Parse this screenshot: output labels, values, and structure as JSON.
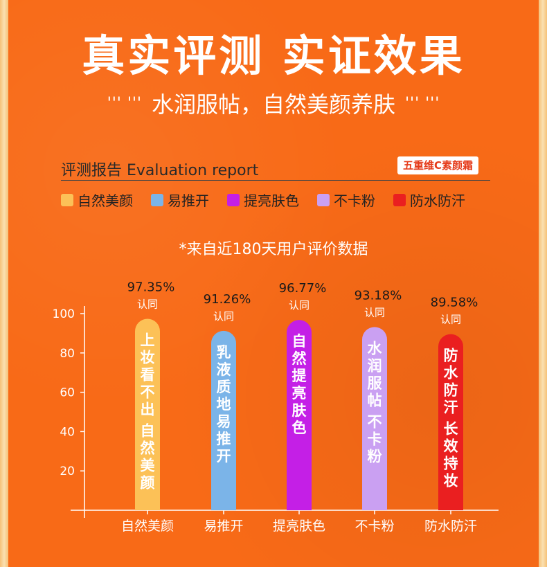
{
  "header": {
    "title": "真实评测 实证效果",
    "subtitle": "水润服帖，自然美颜养肤",
    "deco_left": "''' '''",
    "deco_right": "''' '''"
  },
  "report": {
    "title": "评测报告 Evaluation report",
    "badge": "五重维C素颜霜"
  },
  "legend": [
    {
      "label": "自然美颜",
      "color": "#fcc157"
    },
    {
      "label": "易推开",
      "color": "#7bb4e8"
    },
    {
      "label": "提亮肤色",
      "color": "#c41fe6"
    },
    {
      "label": "不卡粉",
      "color": "#caa0f2"
    },
    {
      "label": "防水防汗",
      "color": "#ea1f20"
    }
  ],
  "note": "*来自近180天用户评价数据",
  "chart_data": {
    "type": "bar",
    "categories": [
      "自然美颜",
      "易推开",
      "提亮肤色",
      "不卡粉",
      "防水防汗"
    ],
    "values": [
      97.35,
      91.26,
      96.77,
      93.18,
      89.58
    ],
    "value_labels": [
      "97.35%",
      "91.26%",
      "96.77%",
      "93.18%",
      "89.58%"
    ],
    "sublabel": "认同",
    "bar_texts": [
      [
        "上妆看不出",
        "自然美颜"
      ],
      [
        "乳液质地易推开"
      ],
      [
        "自然提亮肤色"
      ],
      [
        "水润服帖",
        "不卡粉"
      ],
      [
        "防水防汗",
        "长效持妆"
      ]
    ],
    "colors": [
      "#fcc157",
      "#7bb4e8",
      "#c41fe6",
      "#caa0f2",
      "#ea1f20"
    ],
    "yticks": [
      20,
      40,
      60,
      80,
      100
    ],
    "ylim": [
      0,
      100
    ],
    "grid": false
  }
}
